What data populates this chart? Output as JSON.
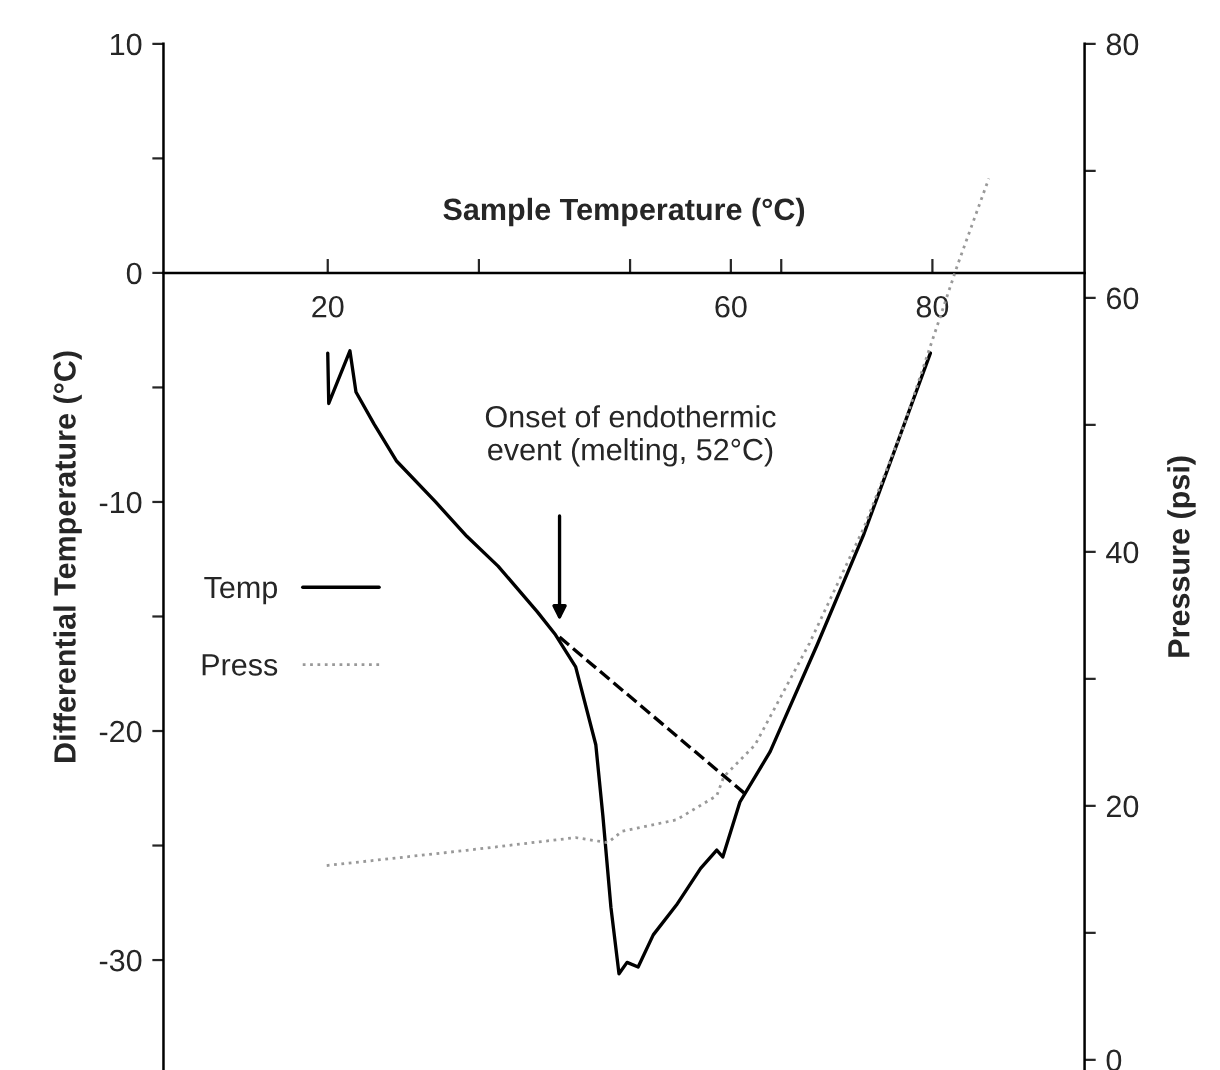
{
  "chart_data": {
    "type": "line",
    "xlabel": "Sample Temperature (°C)",
    "ylabel": "Differential Temperature (°C)",
    "y2label": "Pressure (psi)",
    "xlim": [
      3.7,
      95.1
    ],
    "xticks": [
      {
        "value": 20,
        "label": "20"
      },
      {
        "value": 35,
        "label": null
      },
      {
        "value": 50,
        "label": null
      },
      {
        "value": 60,
        "label": "60"
      },
      {
        "value": 65,
        "label": null
      },
      {
        "value": 80,
        "label": "80"
      }
    ],
    "ylim": [
      -34.8,
      10
    ],
    "yticks": [
      {
        "value": -30,
        "label": "-30"
      },
      {
        "value": -25,
        "label": null
      },
      {
        "value": -20,
        "label": "-20"
      },
      {
        "value": -15,
        "label": null
      },
      {
        "value": -10,
        "label": "-10"
      },
      {
        "value": -5,
        "label": null
      },
      {
        "value": 0,
        "label": "0"
      },
      {
        "value": 5,
        "label": null
      },
      {
        "value": 10,
        "label": "10"
      }
    ],
    "y2lim": [
      -0.8,
      80
    ],
    "y2ticks": [
      {
        "value": 0,
        "label": "0"
      },
      {
        "value": 10,
        "label": null
      },
      {
        "value": 20,
        "label": "20"
      },
      {
        "value": 30,
        "label": null
      },
      {
        "value": 40,
        "label": "40"
      },
      {
        "value": 50,
        "label": null
      },
      {
        "value": 60,
        "label": "60"
      },
      {
        "value": 70,
        "label": null
      },
      {
        "value": 80,
        "label": "80"
      }
    ],
    "legend": "left",
    "grid": false,
    "annotations": [
      "Onset of endothermic\nevent (melting, 52°C)"
    ],
    "series": [
      {
        "name": "Temp",
        "color": "#000000",
        "line_style": "solid",
        "x": [
          20,
          20.1,
          22.2,
          22.8,
          24.6,
          26.8,
          30.7,
          33.8,
          36.9,
          40.8,
          42.6,
          44.6,
          46.6,
          47.3,
          48.1,
          48.9,
          49.7,
          50.8,
          52.3,
          54.6,
          57.0,
          58.6,
          59.2,
          60.9,
          63.9,
          68.6,
          73.2,
          79.8
        ],
        "values": [
          -3.5,
          -5.7,
          -3.4,
          -5.2,
          -6.6,
          -8.2,
          -10.0,
          -11.5,
          -12.8,
          -14.8,
          -15.8,
          -17.2,
          -20.6,
          -23.7,
          -27.7,
          -30.6,
          -30.1,
          -30.3,
          -28.9,
          -27.6,
          -26.0,
          -25.2,
          -25.5,
          -23.1,
          -20.9,
          -16.2,
          -11.4,
          -3.5
        ]
      },
      {
        "name": "Press",
        "color": "#999999",
        "line_style": "dotted",
        "axis": "y2",
        "x": [
          19.9,
          33.8,
          44.6,
          47.8,
          49.2,
          54.6,
          58.6,
          59.3,
          62.4,
          67.8,
          73.2,
          77.1,
          82.5,
          85.6
        ],
        "values": [
          15.3,
          16.5,
          17.5,
          17.1,
          18.0,
          18.9,
          20.8,
          22.3,
          24.8,
          32.8,
          41.9,
          49.8,
          62.6,
          69.4
        ]
      },
      {
        "color": "#000000",
        "line_style": "dashed",
        "x": [
          43.0,
          61.3
        ],
        "values": [
          -15.9,
          -22.7
        ]
      }
    ]
  }
}
